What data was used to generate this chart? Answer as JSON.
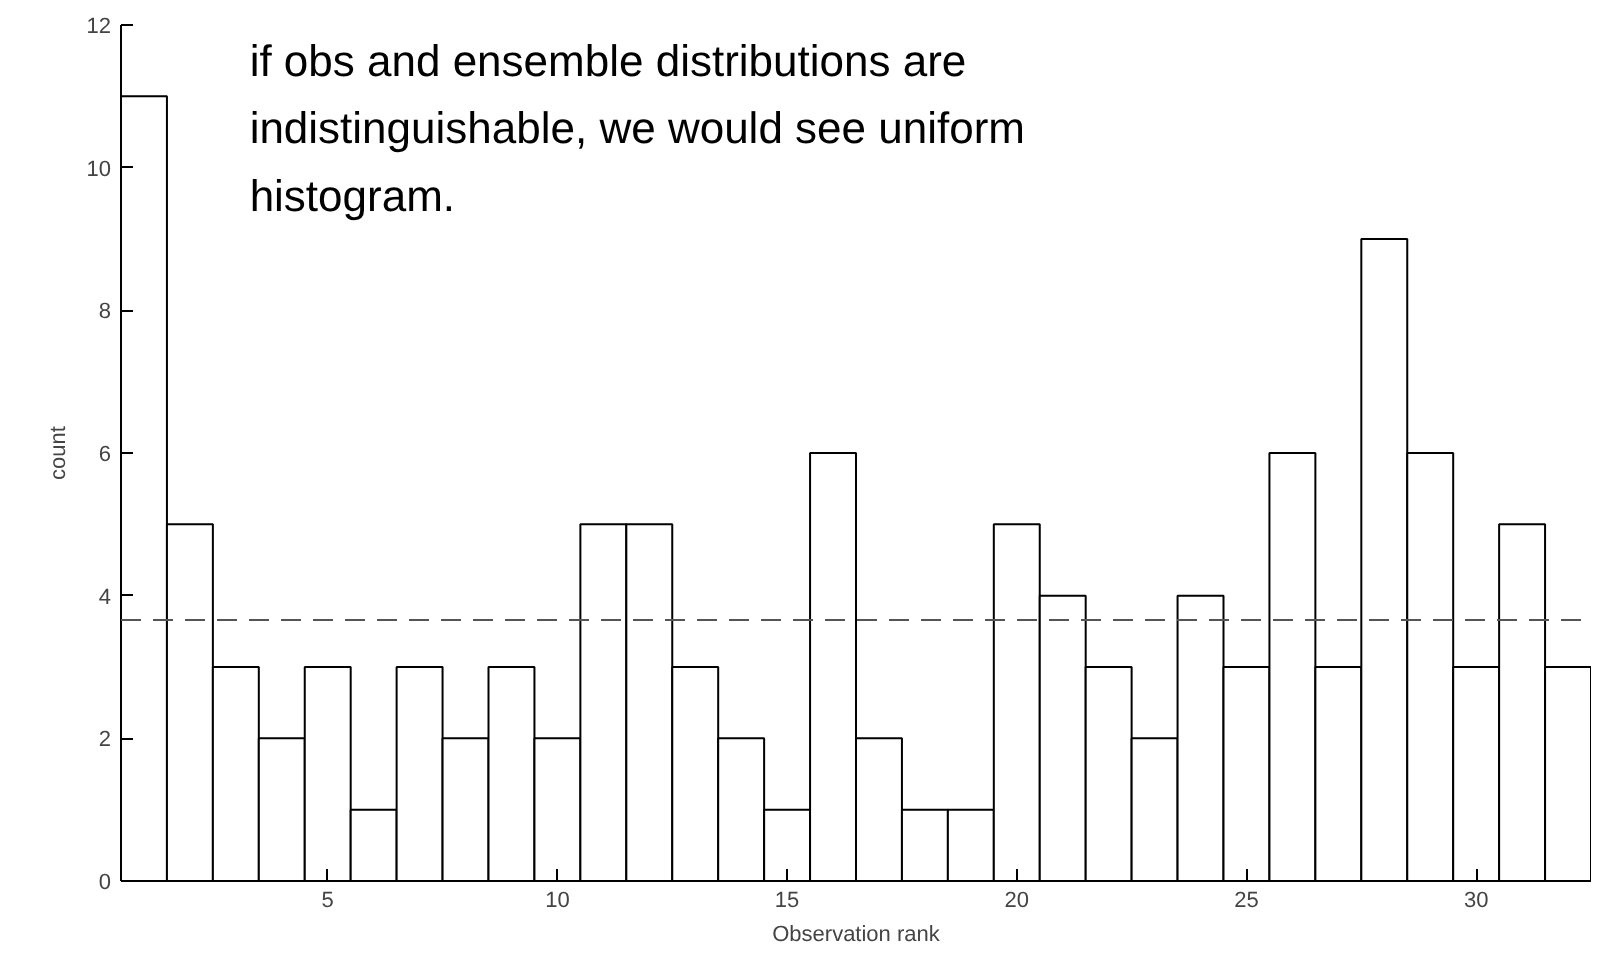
{
  "chart_data": {
    "type": "histogram",
    "xlabel": "Observation rank",
    "ylabel": "count",
    "bins": [
      0.5,
      1.5,
      2.5,
      3.5,
      4.5,
      5.5,
      6.5,
      7.5,
      8.5,
      9.5,
      10.5,
      11.5,
      12.5,
      13.5,
      14.5,
      15.5,
      16.5,
      17.5,
      18.5,
      19.5,
      20.5,
      21.5,
      22.5,
      23.5,
      24.5,
      25.5,
      26.5,
      27.5,
      28.5,
      29.5,
      30.5,
      31.5,
      32.5
    ],
    "values": [
      11,
      5,
      3,
      2,
      3,
      1,
      3,
      2,
      3,
      2,
      5,
      5,
      3,
      2,
      1,
      6,
      2,
      1,
      1,
      5,
      4,
      3,
      2,
      4,
      3,
      6,
      3,
      9,
      6,
      3,
      5,
      3
    ],
    "color": "#ffffff",
    "xlim": [
      0.5,
      32.5
    ],
    "ylim": [
      0,
      12
    ],
    "xticks": [
      5,
      10,
      15,
      20,
      25,
      30
    ],
    "yticks": [
      0,
      2,
      4,
      6,
      8,
      10,
      12
    ],
    "grid": false,
    "ref_lines": [
      {
        "axis": "y",
        "value": 3.66,
        "line_style": "dashed"
      }
    ],
    "annotations": [
      "if obs and ensemble distributions are indistinguishable, we would see uniform histogram."
    ]
  }
}
